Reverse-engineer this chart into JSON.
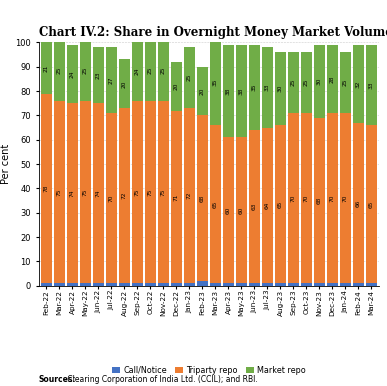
{
  "title": "Chart IV.2: Share in Overnight Money Market Volumes",
  "ylabel": "Per cent",
  "categories": [
    "Feb-22",
    "Mar-22",
    "Apr-22",
    "May-22",
    "Jun-22",
    "Jul-22",
    "Aug-22",
    "Sep-22",
    "Oct-22",
    "Nov-22",
    "Dec-22",
    "Jan-23",
    "Feb-23",
    "Mar-23",
    "Apr-23",
    "May-23",
    "Jun-23",
    "Jul-23",
    "Aug-23",
    "Sep-23",
    "Oct-23",
    "Nov-23",
    "Dec-23",
    "Jan-24",
    "Feb-24",
    "Mar-24"
  ],
  "call_notice": [
    1,
    1,
    1,
    1,
    1,
    1,
    1,
    1,
    1,
    1,
    1,
    1,
    2,
    1,
    1,
    1,
    1,
    1,
    1,
    1,
    1,
    1,
    1,
    1,
    1,
    1
  ],
  "triparty_repo": [
    78,
    75,
    74,
    75,
    74,
    70,
    72,
    75,
    75,
    75,
    71,
    72,
    68,
    65,
    60,
    60,
    63,
    64,
    65,
    70,
    70,
    68,
    70,
    70,
    66,
    65
  ],
  "market_repo": [
    21,
    25,
    24,
    25,
    23,
    27,
    20,
    24,
    25,
    25,
    20,
    25,
    20,
    35,
    38,
    38,
    35,
    33,
    30,
    25,
    25,
    30,
    28,
    25,
    32,
    33
  ],
  "call_color": "#4472c4",
  "triparty_color": "#ed7d31",
  "market_color": "#70ad47",
  "ylim": [
    0,
    100
  ],
  "source_text_bold": "Sources:",
  "source_text_normal": " Clearing Corporation of India Ltd. (CCIL); and RBI.",
  "legend_labels": [
    "Call/Notice",
    "Triparty repo",
    "Market repo"
  ],
  "bar_value_fontsize": 4.2,
  "title_fontsize": 8.5,
  "ylabel_fontsize": 7,
  "tick_fontsize": 6,
  "xtick_fontsize": 5.2,
  "legend_fontsize": 5.8,
  "source_fontsize": 5.5
}
